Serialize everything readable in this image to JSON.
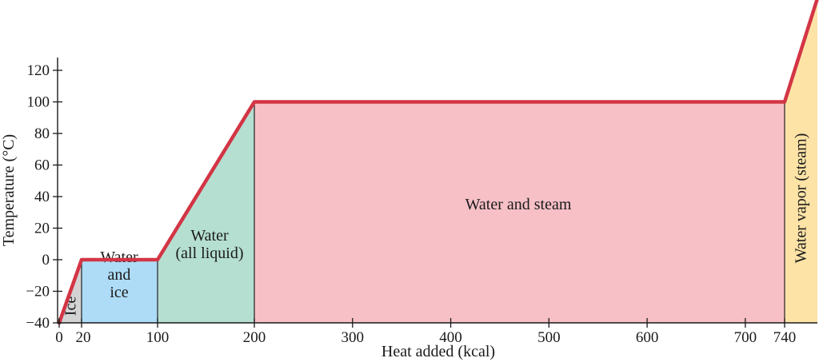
{
  "chart_data": {
    "type": "line",
    "title": "",
    "xlabel": "Heat added (kcal)",
    "ylabel": "Temperature (°C)",
    "xlim": [
      0,
      770
    ],
    "ylim": [
      -40,
      130
    ],
    "x_ticks": [
      0,
      20,
      100,
      200,
      300,
      400,
      500,
      600,
      700,
      740
    ],
    "y_ticks": [
      -40,
      -20,
      0,
      20,
      40,
      60,
      80,
      100,
      120
    ],
    "series": [
      {
        "x": [
          0,
          20,
          100,
          200,
          740,
          770
        ],
        "y": [
          -40,
          0,
          0,
          100,
          100,
          220
        ]
      }
    ],
    "regions": [
      {
        "label": "Ice",
        "x_start": 0,
        "x_end": 20,
        "orientation": "vertical",
        "color": "#d3d3d3"
      },
      {
        "label": "Water and ice",
        "lines": [
          "Water",
          "and",
          "ice"
        ],
        "x_start": 20,
        "x_end": 100,
        "orientation": "horizontal",
        "color": "#aedcf7"
      },
      {
        "label": "Water (all liquid)",
        "lines": [
          "Water",
          "(all liquid)"
        ],
        "x_start": 100,
        "x_end": 200,
        "orientation": "horizontal",
        "color": "#b5dfd1"
      },
      {
        "label": "Water and steam",
        "lines": [
          "Water and steam"
        ],
        "x_start": 200,
        "x_end": 740,
        "orientation": "horizontal",
        "color": "#f7c0c7"
      },
      {
        "label": "Water vapor (steam)",
        "x_start": 740,
        "x_end": 770,
        "orientation": "vertical",
        "color": "#fde3a6"
      }
    ],
    "grid": false,
    "legend": "none",
    "colors": {
      "curve": "#d33545",
      "axis": "#1a1a1a"
    }
  }
}
